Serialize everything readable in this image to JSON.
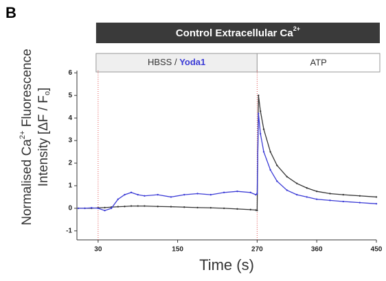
{
  "panel_label": "B",
  "chart_data": {
    "type": "line",
    "header": {
      "main": "Control Extracellular Ca",
      "main_sup": "2+",
      "left": "HBSS",
      "left_sep": " / ",
      "left_drug": "Yoda1",
      "right": "ATP"
    },
    "ylabel": {
      "line1": "Normalised Ca",
      "line1_sup": "2+",
      "line1_end": " Fluorescence",
      "line2": "Intensity [ΔF / F",
      "line2_sub": "o",
      "line2_end": "]"
    },
    "xlabel": "Time (s)",
    "x": [
      0,
      10,
      20,
      30,
      40,
      50,
      60,
      70,
      80,
      90,
      100,
      120,
      140,
      160,
      180,
      200,
      220,
      240,
      260,
      268,
      270,
      272,
      275,
      280,
      290,
      300,
      315,
      330,
      345,
      360,
      380,
      400,
      425,
      450
    ],
    "series": [
      {
        "color": "#333333",
        "values": [
          0,
          0,
          0,
          0.02,
          0.03,
          0.05,
          0.07,
          0.08,
          0.1,
          0.1,
          0.1,
          0.08,
          0.07,
          0.05,
          0.03,
          0.02,
          0,
          -0.03,
          -0.06,
          -0.08,
          -0.1,
          5.0,
          4.3,
          3.5,
          2.5,
          1.9,
          1.4,
          1.1,
          0.9,
          0.75,
          0.65,
          0.6,
          0.55,
          0.5
        ]
      },
      {
        "color": "#3a3ad6",
        "values": [
          0,
          0,
          0.02,
          0,
          -0.1,
          0,
          0.4,
          0.6,
          0.7,
          0.6,
          0.55,
          0.6,
          0.5,
          0.6,
          0.65,
          0.6,
          0.7,
          0.75,
          0.7,
          0.6,
          0.65,
          4.2,
          3.3,
          2.5,
          1.7,
          1.2,
          0.8,
          0.6,
          0.5,
          0.4,
          0.35,
          0.3,
          0.25,
          0.2
        ]
      }
    ],
    "markers": [
      30,
      270
    ],
    "marker_color": "#e05050",
    "xlim": [
      -2,
      450
    ],
    "xticks": [
      30,
      150,
      270,
      360,
      450
    ],
    "ylim": [
      -1.4,
      6.1
    ],
    "yticks": [
      -1,
      0,
      1,
      2,
      3,
      4,
      5,
      6
    ]
  }
}
